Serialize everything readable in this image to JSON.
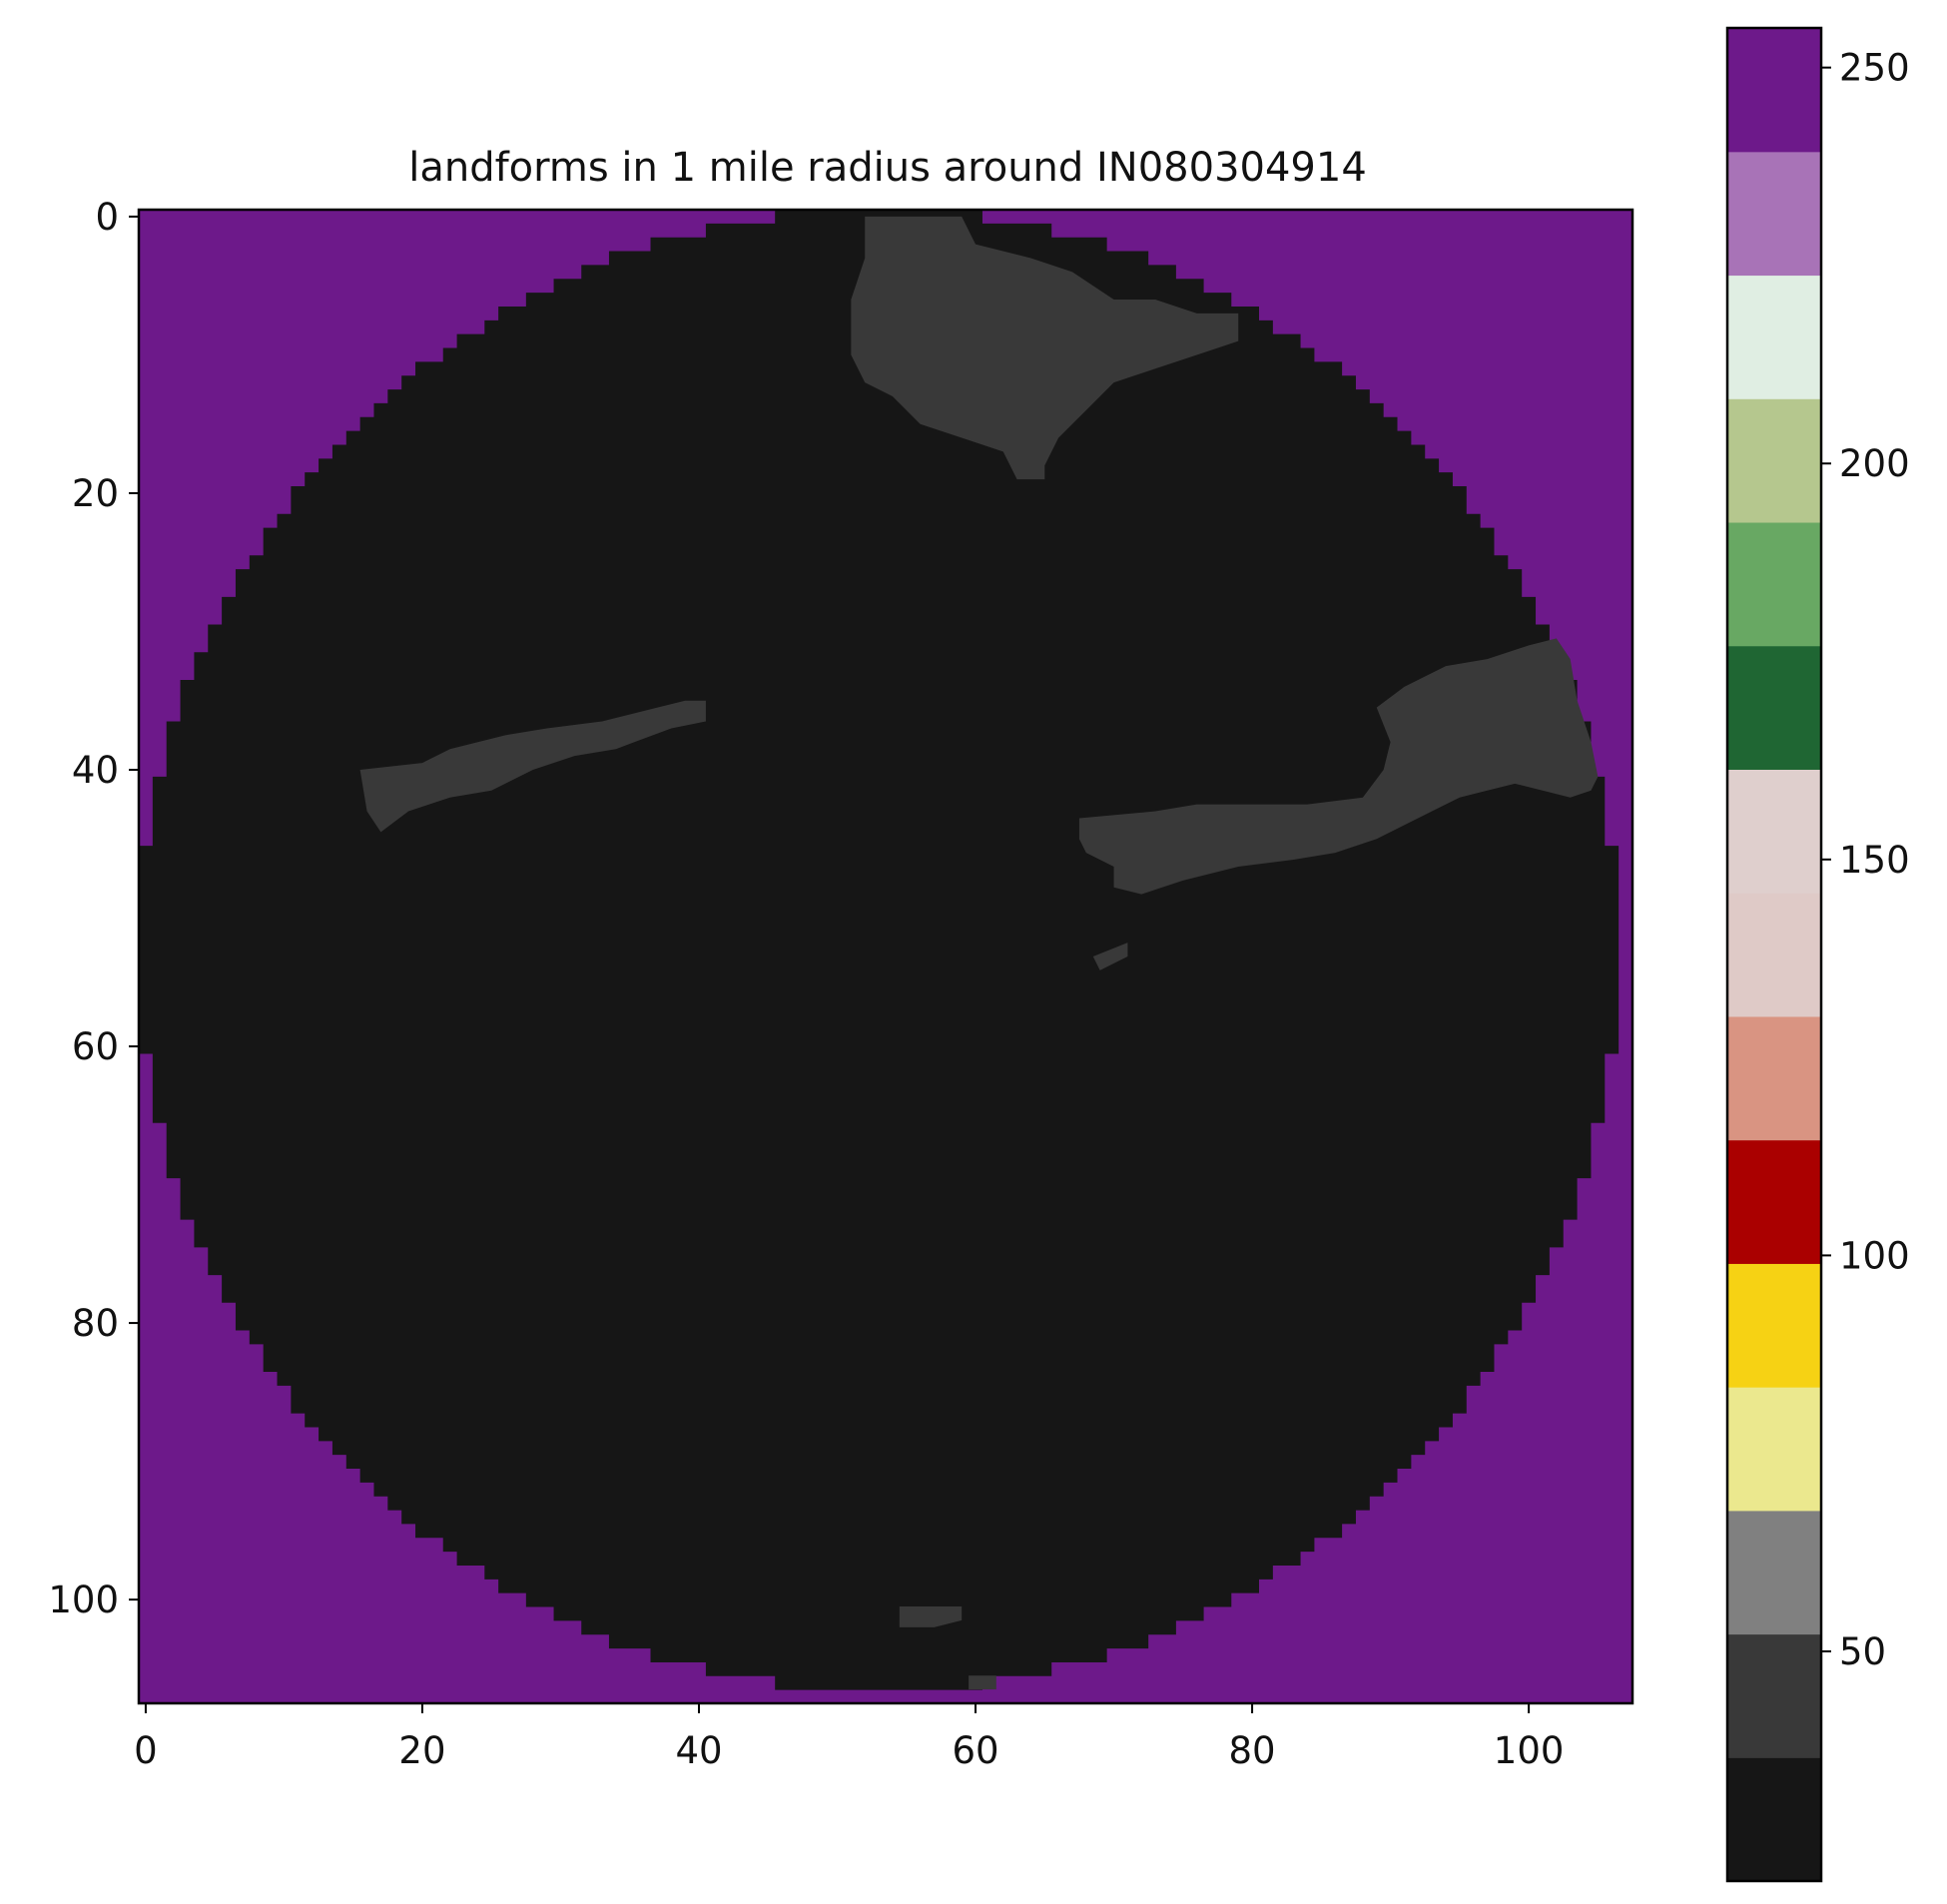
{
  "chart_data": {
    "type": "heatmap",
    "title": "landforms in 1 mile radius around IN080304914",
    "xlabel": "",
    "ylabel": "",
    "x_range": [
      -0.5,
      107.5
    ],
    "y_range": [
      -0.5,
      107.5
    ],
    "x_ticks": [
      0,
      20,
      40,
      60,
      80,
      100
    ],
    "y_ticks": [
      0,
      20,
      40,
      60,
      80,
      100
    ],
    "grid": false,
    "grid_size": 108,
    "background_value": 255,
    "disk_value": 21,
    "disk": {
      "center": [
        53.5,
        53.5
      ],
      "radius": 53.5
    },
    "patches": [
      {
        "value": 42,
        "polygon": [
          [
            52,
            0
          ],
          [
            59,
            0
          ],
          [
            60,
            2
          ],
          [
            64,
            3
          ],
          [
            67,
            4
          ],
          [
            70,
            6
          ],
          [
            73,
            6
          ],
          [
            76,
            7
          ],
          [
            79,
            7
          ],
          [
            79,
            9
          ],
          [
            76,
            10
          ],
          [
            73,
            11
          ],
          [
            70,
            12
          ],
          [
            68,
            14
          ],
          [
            66,
            16
          ],
          [
            65,
            18
          ],
          [
            65,
            19
          ],
          [
            63,
            19
          ],
          [
            62,
            17
          ],
          [
            59,
            16
          ],
          [
            56,
            15
          ],
          [
            54,
            13
          ],
          [
            52,
            12
          ],
          [
            51,
            10
          ],
          [
            51,
            6
          ],
          [
            52,
            3
          ]
        ]
      },
      {
        "value": 42,
        "polygon": [
          [
            15.5,
            40
          ],
          [
            20,
            39.5
          ],
          [
            22,
            38.5
          ],
          [
            26,
            37.5
          ],
          [
            29,
            37
          ],
          [
            33,
            36.5
          ],
          [
            37,
            35.5
          ],
          [
            39,
            35
          ],
          [
            40.5,
            35
          ],
          [
            40.5,
            36.5
          ],
          [
            38,
            37
          ],
          [
            34,
            38.5
          ],
          [
            31,
            39
          ],
          [
            28,
            40
          ],
          [
            25,
            41.5
          ],
          [
            22,
            42
          ],
          [
            19,
            43
          ],
          [
            17,
            44.5
          ],
          [
            16,
            43
          ]
        ]
      },
      {
        "value": 42,
        "polygon": [
          [
            67.5,
            43.5
          ],
          [
            73,
            43
          ],
          [
            76,
            42.5
          ],
          [
            80,
            42.5
          ],
          [
            84,
            42.5
          ],
          [
            88,
            42
          ],
          [
            89.5,
            40
          ],
          [
            90,
            38
          ],
          [
            89,
            35.5
          ],
          [
            91,
            34
          ],
          [
            94,
            32.5
          ],
          [
            97,
            32
          ],
          [
            100,
            31
          ],
          [
            102,
            30.5
          ],
          [
            103,
            32
          ],
          [
            103.5,
            35
          ],
          [
            104.5,
            38
          ],
          [
            105,
            40.5
          ],
          [
            104.5,
            41.5
          ],
          [
            103,
            42
          ],
          [
            101,
            41.5
          ],
          [
            99,
            41
          ],
          [
            97,
            41.5
          ],
          [
            95,
            42
          ],
          [
            93,
            43
          ],
          [
            91,
            44
          ],
          [
            89,
            45
          ],
          [
            86,
            46
          ],
          [
            83,
            46.5
          ],
          [
            79,
            47
          ],
          [
            75,
            48
          ],
          [
            72,
            49
          ],
          [
            70,
            48.5
          ],
          [
            70,
            47
          ],
          [
            68,
            46
          ],
          [
            67.5,
            45
          ]
        ]
      },
      {
        "value": 42,
        "polygon": [
          [
            68.5,
            53.5
          ],
          [
            71,
            52.5
          ],
          [
            71,
            53.5
          ],
          [
            70,
            54
          ],
          [
            69,
            54.5
          ]
        ]
      },
      {
        "value": 42,
        "polygon": [
          [
            54.5,
            100.5
          ],
          [
            59,
            100.5
          ],
          [
            59,
            101.5
          ],
          [
            57,
            102
          ],
          [
            54.5,
            102
          ]
        ]
      },
      {
        "value": 42,
        "polygon": [
          [
            59.5,
            105.5
          ],
          [
            61.5,
            105.5
          ],
          [
            61.5,
            106.5
          ],
          [
            59.5,
            106.5
          ]
        ]
      }
    ],
    "colorbar": {
      "min": 21,
      "max": 255,
      "ticks": [
        50,
        100,
        150,
        200,
        250
      ],
      "colors": [
        "#161616",
        "#393939",
        "#808080",
        "#ebe88e",
        "#f6d214",
        "#aa0000",
        "#d99482",
        "#dfcac7",
        "#dfcfcd",
        "#1f6633",
        "#68a863",
        "#b5c78e",
        "#e0eee3",
        "#a873b7",
        "#6d198a"
      ]
    }
  }
}
